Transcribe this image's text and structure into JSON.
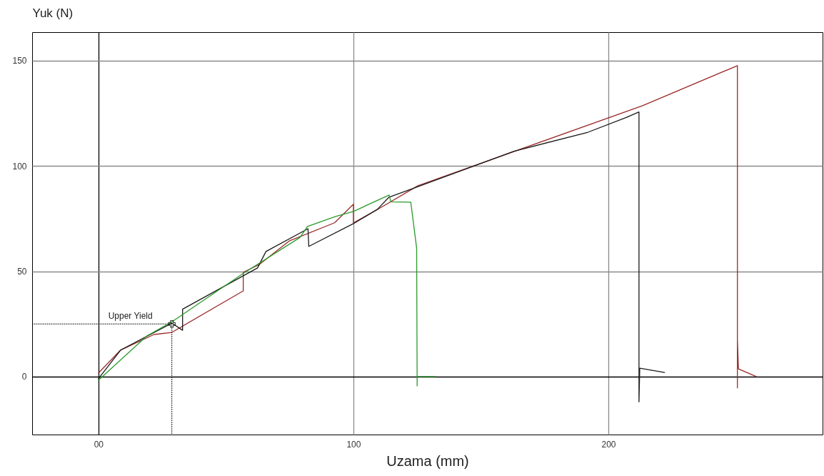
{
  "chart_data": {
    "type": "line",
    "xlabel": "Uzama (mm)",
    "ylabel": "Yuk (N)",
    "xlim": [
      -26,
      284
    ],
    "ylim": [
      -27.5,
      163.5
    ],
    "xticks": [
      {
        "value": 0,
        "label": "00"
      },
      100,
      200
    ],
    "yticks": [
      0,
      50,
      100,
      150
    ],
    "grid": true,
    "line_style": "solid",
    "annotations": [
      {
        "text": "Upper Yield",
        "x": 28.8,
        "y": 25
      }
    ],
    "series": [
      {
        "color": "#9b2a2a",
        "x": [
          0,
          8.7,
          21.8,
          28.8,
          56.8,
          56.8,
          63.2,
          75,
          92.6,
          100,
          100,
          110,
          125.3,
          213.4,
          250.6,
          250.6,
          250.6,
          251,
          258
        ],
        "values": [
          1.7,
          12.6,
          20,
          21,
          40.7,
          49.5,
          53.3,
          64.5,
          73,
          81.8,
          73,
          79.7,
          90.6,
          128.6,
          147.6,
          -5.4,
          17.6,
          3.7,
          0
        ]
      },
      {
        "color": "#1a1a1a",
        "x": [
          0,
          8.7,
          28.8,
          33,
          33,
          62.4,
          65.7,
          82.2,
          82.5,
          100,
          109.4,
          114,
          124,
          163,
          192,
          207,
          212,
          212,
          212.3,
          222
        ],
        "values": [
          -1,
          12.6,
          25.4,
          22,
          32,
          51.6,
          59.4,
          70.2,
          61.8,
          72.6,
          79.4,
          85.2,
          89.6,
          107,
          116,
          123,
          125.6,
          -12,
          4,
          2
        ]
      },
      {
        "type": "line",
        "line_style": "dotted",
        "color": "#000000",
        "x": [
          -26,
          28.8,
          28.8
        ],
        "values": [
          25,
          25,
          -27.5
        ]
      },
      {
        "color": "#2a9a2a",
        "x": [
          0,
          19,
          28.8,
          56.8,
          79,
          82,
          93,
          100,
          114,
          114.7,
          122.5,
          124.8,
          125,
          125,
          132
        ],
        "values": [
          -1.7,
          19.3,
          26,
          49,
          66,
          71.3,
          76,
          78.4,
          86.2,
          83,
          82.8,
          61,
          -4.4,
          0,
          0
        ]
      }
    ]
  }
}
